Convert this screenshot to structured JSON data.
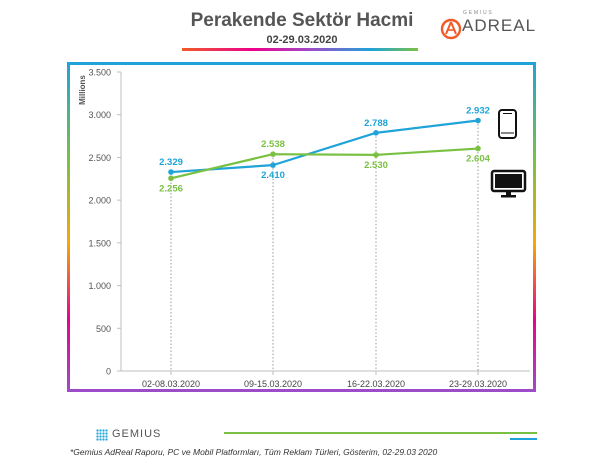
{
  "header": {
    "title": "Perakende Sektör Hacmi",
    "subtitle": "02-29.03.2020",
    "logo_small": "GEMIUS",
    "logo_main": "ADREAL"
  },
  "chart_data": {
    "type": "line",
    "title": "Perakende Sektör Hacmi",
    "subtitle": "02-29.03.2020",
    "ylabel": "Millions",
    "xlabel": "",
    "categories": [
      "02-08.03.2020",
      "09-15.03.2020",
      "16-22.03.2020",
      "23-29.03.2020"
    ],
    "ylim": [
      0,
      3500
    ],
    "yticks": [
      0,
      500,
      1000,
      1500,
      2000,
      2500,
      3000,
      3500
    ],
    "ytick_labels": [
      "0",
      "500",
      "1.000",
      "1.500",
      "2.000",
      "2.500",
      "3.000",
      "3.500"
    ],
    "series": [
      {
        "icon": "mobile-phone-icon",
        "color": "#1fa3d8",
        "values": [
          2329,
          2410,
          2788,
          2932
        ],
        "labels": [
          "2.329",
          "2.410",
          "2.788",
          "2.932"
        ]
      },
      {
        "icon": "desktop-monitor-icon",
        "color": "#7ac143",
        "values": [
          2256,
          2538,
          2530,
          2604
        ],
        "labels": [
          "2.256",
          "2.538",
          "2.530",
          "2.604"
        ]
      }
    ],
    "grid": false
  },
  "footer": {
    "logo": "GEMIUS",
    "source": "*Gemius AdReal Raporu, PC ve Mobil Platformları, Tüm Reklam Türleri, Gösterim, 02-29.03 2020"
  }
}
